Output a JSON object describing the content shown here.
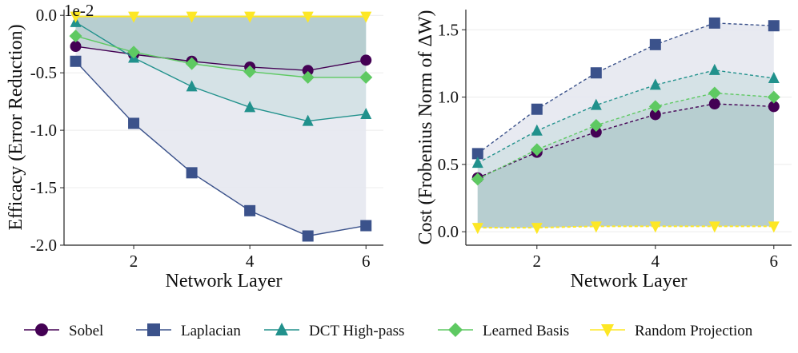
{
  "legend": [
    {
      "name": "Sobel",
      "color": "#440154",
      "marker": "circle"
    },
    {
      "name": "Laplacian",
      "color": "#3b528b",
      "marker": "square"
    },
    {
      "name": "DCT High-pass",
      "color": "#21918c",
      "marker": "triangle-up"
    },
    {
      "name": "Learned Basis",
      "color": "#5ec962",
      "marker": "diamond"
    },
    {
      "name": "Random Projection",
      "color": "#fde725",
      "marker": "triangle-down"
    }
  ],
  "chart_data": [
    {
      "type": "line",
      "xlabel": "Network Layer",
      "ylabel": "Efficacy (Error Reduction)",
      "scale_label": "1e-2",
      "x": [
        1,
        2,
        3,
        4,
        5,
        6
      ],
      "xlim": [
        0.8,
        6.3
      ],
      "ylim": [
        -2.0,
        0.05
      ],
      "xticks": [
        2,
        4,
        6
      ],
      "xtick_labels": [
        "2",
        "4",
        "6"
      ],
      "yticks": [
        0.0,
        -0.5,
        -1.0,
        -1.5,
        -2.0
      ],
      "ytick_labels": [
        "0.0",
        "-0.5",
        "-1.0",
        "-1.5",
        "-2.0"
      ],
      "line_style": "solid",
      "series": [
        {
          "name": "Sobel",
          "values": [
            -0.27,
            -0.34,
            -0.4,
            -0.45,
            -0.48,
            -0.39
          ]
        },
        {
          "name": "Laplacian",
          "values": [
            -0.4,
            -0.94,
            -1.37,
            -1.7,
            -1.92,
            -1.83
          ]
        },
        {
          "name": "DCT High-pass",
          "values": [
            -0.06,
            -0.37,
            -0.62,
            -0.8,
            -0.92,
            -0.86
          ]
        },
        {
          "name": "Learned Basis",
          "values": [
            -0.18,
            -0.32,
            -0.42,
            -0.49,
            -0.54,
            -0.54
          ]
        },
        {
          "name": "Random Projection",
          "values": [
            -0.01,
            -0.01,
            -0.01,
            -0.01,
            -0.01,
            -0.01
          ]
        }
      ]
    },
    {
      "type": "line",
      "xlabel": "Network Layer",
      "ylabel": "Cost (Frobenius Norm of ΔW)",
      "x": [
        1,
        2,
        3,
        4,
        5,
        6
      ],
      "xlim": [
        0.8,
        6.3
      ],
      "ylim": [
        -0.1,
        1.65
      ],
      "xticks": [
        2,
        4,
        6
      ],
      "xtick_labels": [
        "2",
        "4",
        "6"
      ],
      "yticks": [
        0.0,
        0.5,
        1.0,
        1.5
      ],
      "ytick_labels": [
        "0.0",
        "0.5",
        "1.0",
        "1.5"
      ],
      "line_style": "dashed",
      "series": [
        {
          "name": "Sobel",
          "values": [
            0.4,
            0.59,
            0.74,
            0.87,
            0.95,
            0.93
          ]
        },
        {
          "name": "Laplacian",
          "values": [
            0.58,
            0.91,
            1.18,
            1.39,
            1.55,
            1.53
          ]
        },
        {
          "name": "DCT High-pass",
          "values": [
            0.51,
            0.75,
            0.94,
            1.09,
            1.2,
            1.14
          ]
        },
        {
          "name": "Learned Basis",
          "values": [
            0.39,
            0.61,
            0.79,
            0.93,
            1.03,
            1.0
          ]
        },
        {
          "name": "Random Projection",
          "values": [
            0.03,
            0.03,
            0.04,
            0.04,
            0.04,
            0.04
          ]
        }
      ]
    }
  ]
}
